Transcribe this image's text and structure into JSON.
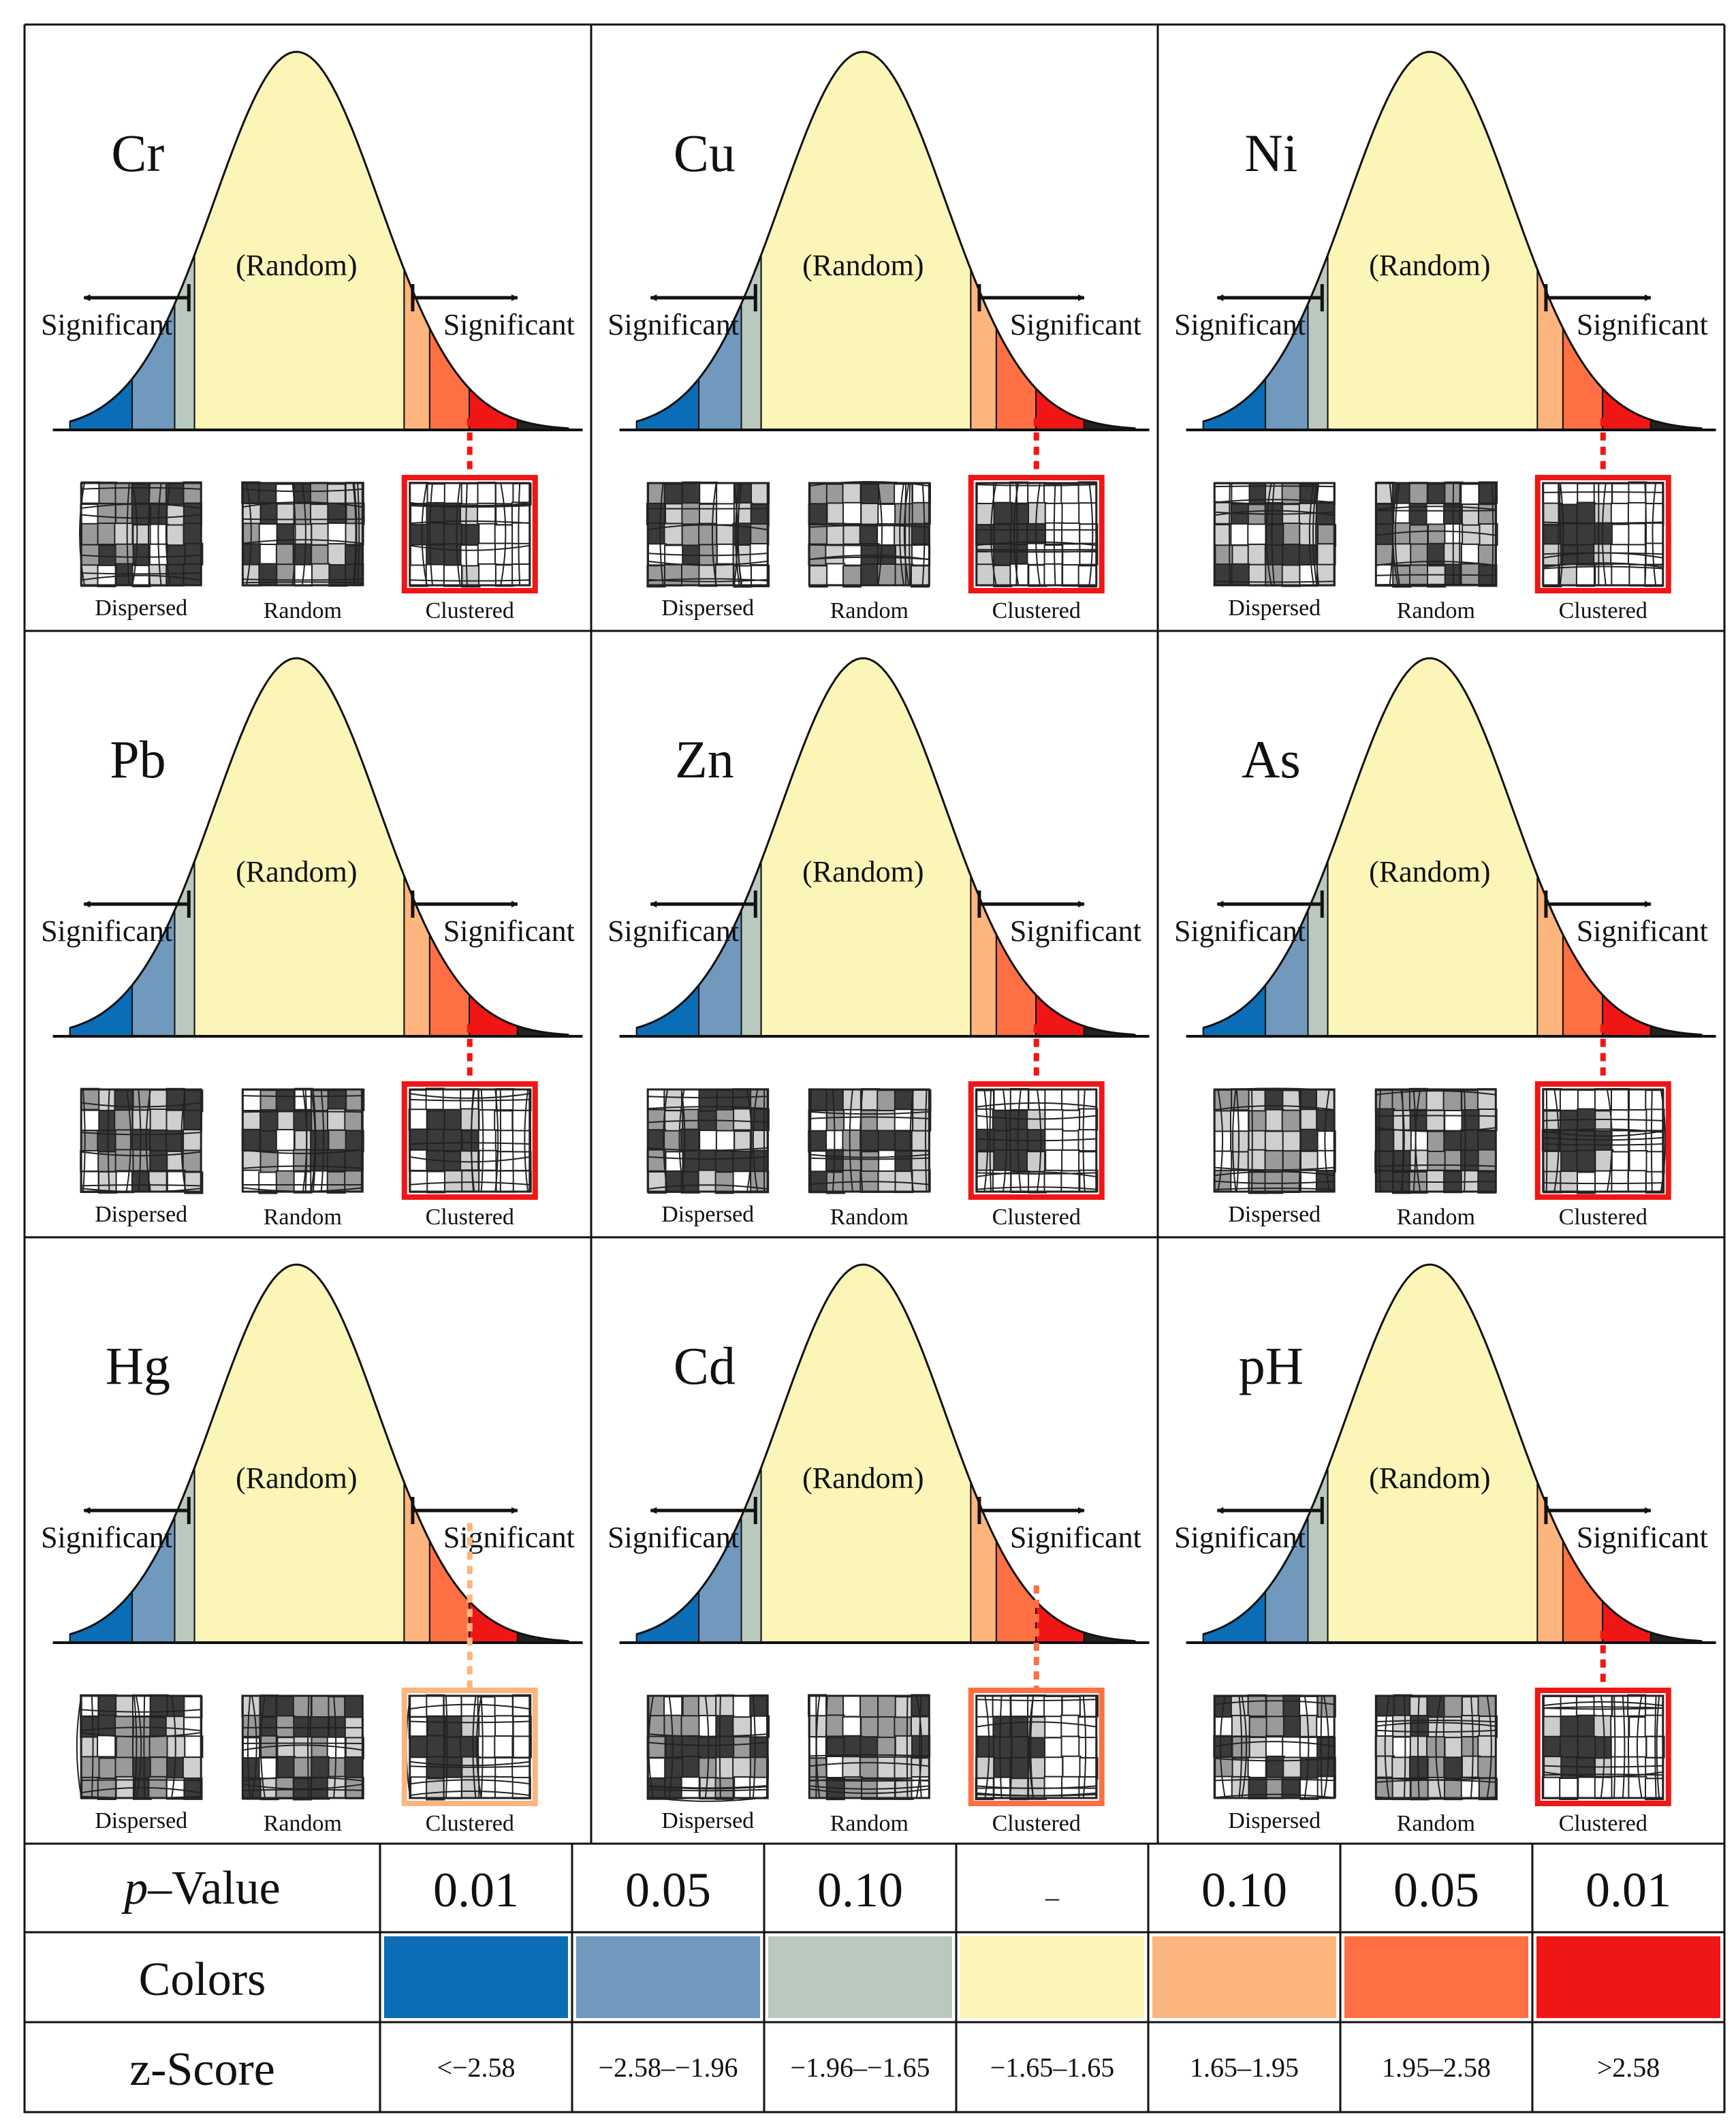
{
  "panels": [
    {
      "element": "Cr",
      "active_class": 6
    },
    {
      "element": "Cu",
      "active_class": 6
    },
    {
      "element": "Ni",
      "active_class": 6
    },
    {
      "element": "Pb",
      "active_class": 6
    },
    {
      "element": "Zn",
      "active_class": 6
    },
    {
      "element": "As",
      "active_class": 6
    },
    {
      "element": "Hg",
      "active_class": 4
    },
    {
      "element": "Cd",
      "active_class": 5
    },
    {
      "element": "pH",
      "active_class": 6
    }
  ],
  "labels": {
    "random_center": "(Random)",
    "significant_left": "Significant",
    "significant_right": "Significant",
    "pattern_dispersed": "Dispersed",
    "pattern_random": "Random",
    "pattern_clustered": "Clustered"
  },
  "legend": {
    "p_label_italic": "p",
    "p_label_rest": "–Value",
    "colors_label": "Colors",
    "z_label": "z-Score",
    "classes": [
      {
        "p": "0.01",
        "color": "#0a6db5",
        "z": "<−2.58"
      },
      {
        "p": "0.05",
        "color": "#7099bd",
        "z": "−2.58–−1.96"
      },
      {
        "p": "0.10",
        "color": "#b9c9bd",
        "z": "−1.96–−1.65"
      },
      {
        "p": "–",
        "color": "#fbf5b8",
        "z": "−1.65–1.65"
      },
      {
        "p": "0.10",
        "color": "#fdb57e",
        "z": "1.65–1.95"
      },
      {
        "p": "0.05",
        "color": "#fe7043",
        "z": "1.95–2.58"
      },
      {
        "p": "0.01",
        "color": "#f01615",
        "z": ">2.58"
      }
    ]
  }
}
